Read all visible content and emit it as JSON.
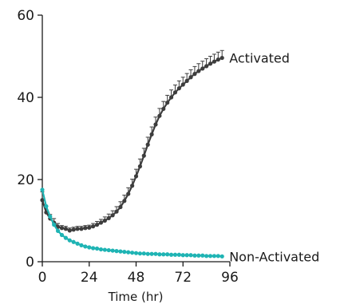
{
  "chart_data": {
    "type": "line",
    "title": "",
    "xlabel": "Time (hr)",
    "ylabel": "",
    "xlim": [
      0,
      96
    ],
    "ylim": [
      0,
      60
    ],
    "xticks": [
      0,
      24,
      48,
      72,
      96
    ],
    "yticks": [
      0,
      20,
      40,
      60
    ],
    "grid": false,
    "series": [
      {
        "name": "Activated",
        "color": "#3d3d3d",
        "error_bars": true,
        "x": [
          0,
          2,
          4,
          6,
          8,
          10,
          12,
          14,
          16,
          18,
          20,
          22,
          24,
          26,
          28,
          30,
          32,
          34,
          36,
          38,
          40,
          42,
          44,
          46,
          48,
          50,
          52,
          54,
          56,
          58,
          60,
          62,
          64,
          66,
          68,
          70,
          72,
          74,
          76,
          78,
          80,
          82,
          84,
          86,
          88,
          90,
          92
        ],
        "y": [
          15,
          12,
          10.5,
          9.5,
          8.5,
          8.2,
          8.0,
          7.6,
          7.8,
          8.0,
          8.0,
          8.2,
          8.3,
          8.6,
          9.0,
          9.5,
          10.0,
          10.6,
          11.3,
          12.2,
          13.3,
          14.8,
          16.5,
          18.5,
          20.8,
          23.2,
          25.8,
          28.5,
          31.0,
          33.4,
          35.5,
          37.2,
          38.7,
          40.0,
          41.2,
          42.2,
          43.1,
          44.0,
          44.9,
          45.7,
          46.4,
          47.0,
          47.6,
          48.2,
          48.7,
          49.2,
          49.6
        ],
        "err": [
          2,
          1.5,
          1,
          1,
          0.8,
          0.6,
          0.6,
          0.6,
          0.6,
          0.6,
          0.6,
          0.6,
          0.6,
          0.7,
          0.8,
          0.8,
          0.9,
          1.0,
          1.1,
          1.2,
          1.3,
          1.4,
          1.5,
          1.6,
          1.7,
          1.8,
          1.8,
          1.8,
          1.8,
          1.8,
          1.8,
          1.8,
          1.8,
          1.8,
          1.8,
          1.8,
          1.8,
          1.8,
          1.8,
          1.8,
          1.8,
          1.8,
          1.8,
          1.8,
          1.8,
          1.8,
          1.8
        ]
      },
      {
        "name": "Non-Activated",
        "color": "#1fb4b4",
        "error_bars": false,
        "x": [
          0,
          2,
          4,
          6,
          8,
          10,
          12,
          14,
          16,
          18,
          20,
          22,
          24,
          26,
          28,
          30,
          32,
          34,
          36,
          38,
          40,
          42,
          44,
          46,
          48,
          50,
          52,
          54,
          56,
          58,
          60,
          62,
          64,
          66,
          68,
          70,
          72,
          74,
          76,
          78,
          80,
          82,
          84,
          86,
          88,
          90,
          92
        ],
        "y": [
          17.5,
          13.5,
          11.0,
          9.0,
          7.5,
          6.5,
          5.8,
          5.2,
          4.8,
          4.4,
          4.0,
          3.7,
          3.5,
          3.3,
          3.2,
          3.0,
          2.9,
          2.8,
          2.7,
          2.6,
          2.5,
          2.4,
          2.3,
          2.2,
          2.1,
          2.0,
          2.0,
          1.9,
          1.9,
          1.9,
          1.8,
          1.8,
          1.8,
          1.7,
          1.7,
          1.7,
          1.6,
          1.6,
          1.6,
          1.5,
          1.5,
          1.5,
          1.4,
          1.4,
          1.4,
          1.4,
          1.3
        ],
        "err": []
      }
    ]
  }
}
